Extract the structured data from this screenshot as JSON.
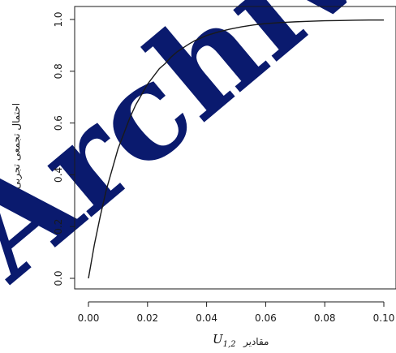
{
  "chart_data": {
    "type": "line",
    "title": "",
    "xlabel": "مقادیر",
    "xlabel_math": "U",
    "xlabel_math_sub": "1,2",
    "ylabel": "احتمال تجمعی تجربی",
    "xlim": [
      0.0,
      0.101
    ],
    "ylim": [
      0.0,
      1.0
    ],
    "x_ticks": [
      "0.00",
      "0.02",
      "0.04",
      "0.06",
      "0.08",
      "0.10"
    ],
    "y_ticks": [
      "0.0",
      "0.2",
      "0.4",
      "0.6",
      "0.8",
      "1.0"
    ],
    "grid": false,
    "legend": "none",
    "line_color": "#1a1a1a",
    "watermark_text": "Archive",
    "watermark_color": "#0a1a6e",
    "series": [
      {
        "x": [
          0.0,
          0.002,
          0.004,
          0.006,
          0.008,
          0.01,
          0.012,
          0.014,
          0.016,
          0.018,
          0.02,
          0.022,
          0.024,
          0.026,
          0.028,
          0.03,
          0.032,
          0.034,
          0.036,
          0.038,
          0.04,
          0.044,
          0.048,
          0.052,
          0.056,
          0.06,
          0.065,
          0.07,
          0.075,
          0.08,
          0.085,
          0.09,
          0.095,
          0.1
        ],
        "y": [
          0.0,
          0.13,
          0.24,
          0.34,
          0.42,
          0.5,
          0.56,
          0.62,
          0.67,
          0.71,
          0.75,
          0.78,
          0.81,
          0.83,
          0.855,
          0.875,
          0.89,
          0.905,
          0.918,
          0.928,
          0.938,
          0.952,
          0.963,
          0.972,
          0.979,
          0.984,
          0.988,
          0.991,
          0.993,
          0.995,
          0.996,
          0.997,
          0.998,
          0.998
        ]
      }
    ]
  }
}
